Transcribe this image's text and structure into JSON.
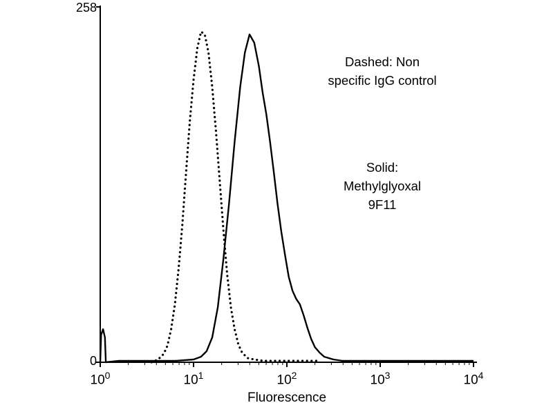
{
  "chart_data": {
    "type": "line",
    "title": "",
    "xlabel": "Fluorescence",
    "x_scale": "log10",
    "x_range_log": [
      0,
      4
    ],
    "ylim": [
      0,
      258
    ],
    "y_axis": {
      "max_label": "258",
      "min_label": "0"
    },
    "x_ticks": [
      {
        "base": "10",
        "exp": "0"
      },
      {
        "base": "10",
        "exp": "1"
      },
      {
        "base": "10",
        "exp": "2"
      },
      {
        "base": "10",
        "exp": "3"
      },
      {
        "base": "10",
        "exp": "4"
      }
    ],
    "grid": false,
    "legend_position": "none",
    "series": [
      {
        "name": "Non specific IgG control",
        "style": "dashed",
        "points": [
          [
            0.55,
            0
          ],
          [
            0.62,
            2
          ],
          [
            0.68,
            6
          ],
          [
            0.72,
            12
          ],
          [
            0.76,
            24
          ],
          [
            0.8,
            42
          ],
          [
            0.84,
            68
          ],
          [
            0.88,
            100
          ],
          [
            0.92,
            138
          ],
          [
            0.96,
            175
          ],
          [
            1.0,
            205
          ],
          [
            1.04,
            228
          ],
          [
            1.08,
            240
          ],
          [
            1.12,
            238
          ],
          [
            1.16,
            225
          ],
          [
            1.2,
            200
          ],
          [
            1.24,
            168
          ],
          [
            1.28,
            132
          ],
          [
            1.32,
            96
          ],
          [
            1.36,
            64
          ],
          [
            1.4,
            40
          ],
          [
            1.44,
            24
          ],
          [
            1.48,
            13
          ],
          [
            1.52,
            7
          ],
          [
            1.58,
            3
          ],
          [
            1.65,
            2
          ],
          [
            1.75,
            1
          ],
          [
            1.9,
            1
          ],
          [
            2.05,
            1
          ],
          [
            2.2,
            1
          ],
          [
            2.35,
            1
          ]
        ]
      },
      {
        "name": "Methylglyoxal 9F11",
        "style": "solid",
        "points": [
          [
            0.0,
            0
          ],
          [
            0.01,
            20
          ],
          [
            0.03,
            24
          ],
          [
            0.05,
            18
          ],
          [
            0.06,
            0
          ],
          [
            0.2,
            1
          ],
          [
            0.5,
            1
          ],
          [
            0.8,
            1
          ],
          [
            1.0,
            2
          ],
          [
            1.08,
            4
          ],
          [
            1.14,
            8
          ],
          [
            1.2,
            18
          ],
          [
            1.26,
            40
          ],
          [
            1.32,
            75
          ],
          [
            1.38,
            115
          ],
          [
            1.44,
            160
          ],
          [
            1.5,
            200
          ],
          [
            1.55,
            225
          ],
          [
            1.6,
            238
          ],
          [
            1.65,
            232
          ],
          [
            1.7,
            215
          ],
          [
            1.74,
            196
          ],
          [
            1.78,
            180
          ],
          [
            1.82,
            160
          ],
          [
            1.86,
            138
          ],
          [
            1.9,
            115
          ],
          [
            1.94,
            95
          ],
          [
            1.98,
            78
          ],
          [
            2.02,
            62
          ],
          [
            2.06,
            52
          ],
          [
            2.1,
            46
          ],
          [
            2.14,
            42
          ],
          [
            2.18,
            34
          ],
          [
            2.22,
            25
          ],
          [
            2.26,
            17
          ],
          [
            2.3,
            11
          ],
          [
            2.35,
            7
          ],
          [
            2.4,
            4
          ],
          [
            2.5,
            2
          ],
          [
            2.6,
            1
          ],
          [
            2.8,
            1
          ],
          [
            3.0,
            1
          ],
          [
            3.5,
            1
          ],
          [
            4.0,
            1
          ]
        ]
      }
    ],
    "annotations": [
      {
        "id": "dashed",
        "lines": [
          "Dashed: Non",
          "specific IgG control"
        ]
      },
      {
        "id": "solid",
        "lines": [
          "Solid:",
          "Methylglyoxal",
          "9F11"
        ]
      }
    ],
    "colors": {
      "curve": "#000000",
      "background": "#ffffff"
    }
  }
}
